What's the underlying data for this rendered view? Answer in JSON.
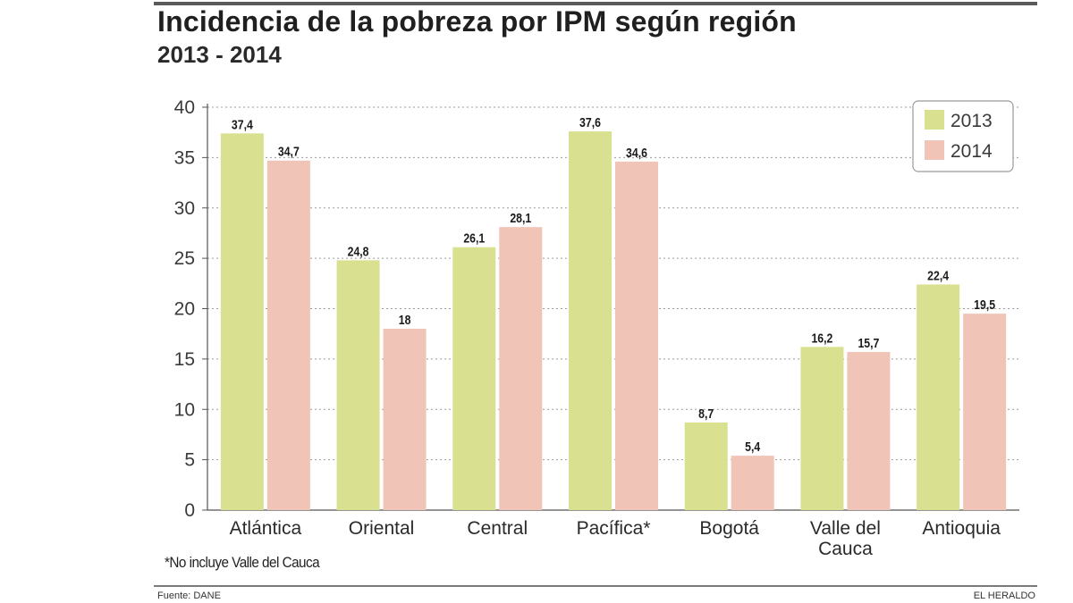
{
  "header": {
    "title": "Incidencia de la pobreza por IPM según región",
    "subtitle": "2013 - 2014"
  },
  "chart_data": {
    "type": "bar",
    "title": "Incidencia de la pobreza por IPM según región",
    "subtitle": "2013 - 2014",
    "xlabel": "",
    "ylabel": "",
    "ylim": [
      0,
      40
    ],
    "yticks": [
      0,
      5,
      10,
      15,
      20,
      25,
      30,
      35,
      40
    ],
    "grid": true,
    "legend_position": "top-right",
    "categories": [
      [
        "Atlántica"
      ],
      [
        "Oriental"
      ],
      [
        "Central"
      ],
      [
        "Pacífica*"
      ],
      [
        "Bogotá"
      ],
      [
        "Valle del",
        "Cauca"
      ],
      [
        "Antioquia"
      ]
    ],
    "series": [
      {
        "name": "2013",
        "color": "#d9e08f",
        "values": [
          37.4,
          24.8,
          26.1,
          37.6,
          8.7,
          16.2,
          22.4
        ],
        "labels": [
          "37,4",
          "24,8",
          "26,1",
          "37,6",
          "8,7",
          "16,2",
          "22,4"
        ]
      },
      {
        "name": "2014",
        "color": "#f0c4b7",
        "values": [
          34.7,
          18,
          28.1,
          34.6,
          5.4,
          15.7,
          19.5
        ],
        "labels": [
          "34,7",
          "18",
          "28,1",
          "34,6",
          "5,4",
          "15,7",
          "19,5"
        ]
      }
    ]
  },
  "footer": {
    "note": "*No incluye Valle del Cauca",
    "source": "Fuente: DANE",
    "brand": "EL HERALDO"
  }
}
